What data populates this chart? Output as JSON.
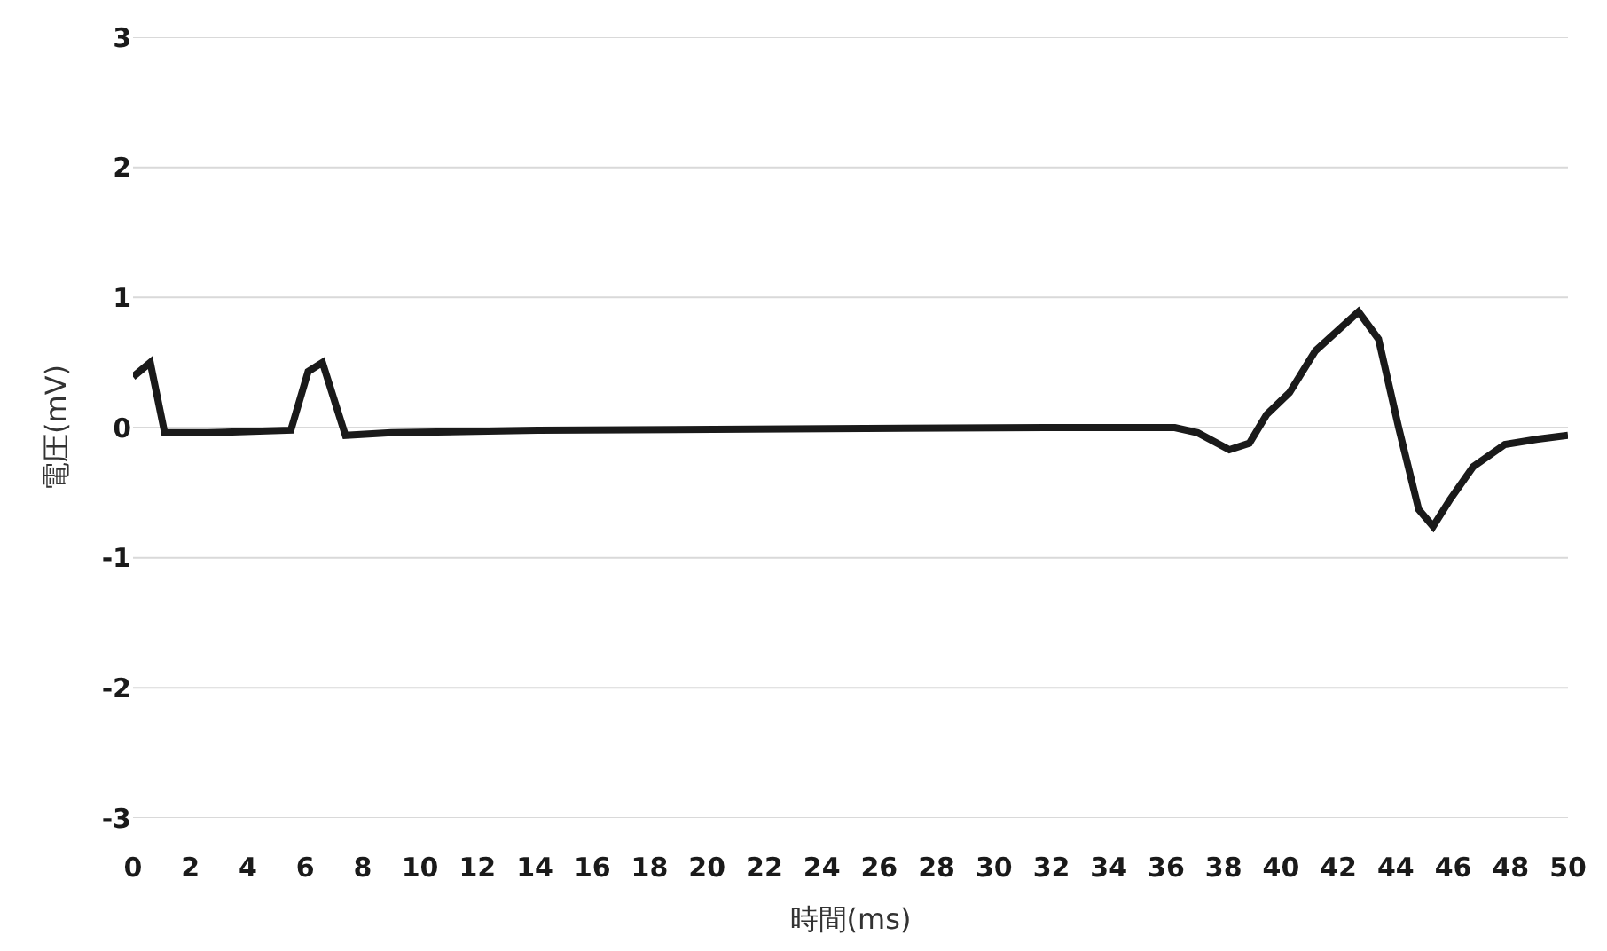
{
  "chart_data": {
    "type": "line",
    "xlabel": "時間(ms)",
    "ylabel": "電圧(mV)",
    "x": [
      0,
      0.6,
      1.1,
      2.6,
      5.5,
      6.1,
      6.6,
      7.4,
      9,
      14.1,
      31.8,
      36.3,
      37.1,
      38.2,
      38.9,
      39.5,
      40.3,
      41.2,
      42.7,
      43.4,
      44.1,
      44.8,
      45.3,
      45.9,
      46.7,
      47.8,
      48.9,
      50
    ],
    "series": [
      {
        "color": "#1a1a1a",
        "values": [
          0.39,
          0.5,
          -0.04,
          -0.04,
          -0.02,
          0.43,
          0.5,
          -0.06,
          -0.04,
          -0.02,
          0,
          0,
          -0.04,
          -0.17,
          -0.12,
          0.1,
          0.27,
          0.59,
          0.89,
          0.68,
          0,
          -0.63,
          -0.76,
          -0.55,
          -0.3,
          -0.13,
          -0.09,
          -0.06
        ]
      }
    ],
    "xlim": [
      0,
      50
    ],
    "xticks": [
      0,
      2,
      4,
      6,
      8,
      10,
      12,
      14,
      16,
      18,
      20,
      22,
      24,
      26,
      28,
      30,
      32,
      34,
      36,
      38,
      40,
      42,
      44,
      46,
      48,
      50
    ],
    "ylim": [
      -3,
      3
    ],
    "yticks": [
      -3,
      -2,
      -1,
      0,
      1,
      2,
      3
    ],
    "grid": "y",
    "marker": "none",
    "line_style": "solid"
  }
}
